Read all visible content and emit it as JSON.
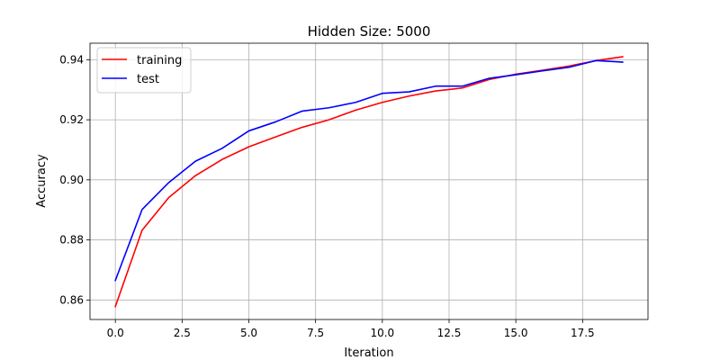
{
  "chart_data": {
    "type": "line",
    "title": "Hidden Size: 5000",
    "xlabel": "Iteration",
    "ylabel": "Accuracy",
    "xlim": [
      -0.95,
      19.95
    ],
    "ylim": [
      0.8535,
      0.9455
    ],
    "xticks": [
      0.0,
      2.5,
      5.0,
      7.5,
      10.0,
      12.5,
      15.0,
      17.5
    ],
    "xtick_labels": [
      "0.0",
      "2.5",
      "5.0",
      "7.5",
      "10.0",
      "12.5",
      "15.0",
      "17.5"
    ],
    "yticks": [
      0.86,
      0.88,
      0.9,
      0.92,
      0.94
    ],
    "ytick_labels": [
      "0.86",
      "0.88",
      "0.90",
      "0.92",
      "0.94"
    ],
    "grid": true,
    "legend_position": "top-left",
    "series": [
      {
        "name": "training",
        "color": "#ff0000",
        "x": [
          0,
          1,
          2,
          3,
          4,
          5,
          6,
          7,
          8,
          9,
          10,
          11,
          12,
          13,
          14,
          15,
          16,
          17,
          18,
          19
        ],
        "values": [
          0.8578,
          0.8832,
          0.8941,
          0.9014,
          0.9068,
          0.911,
          0.9143,
          0.9175,
          0.92,
          0.9232,
          0.9258,
          0.9279,
          0.9296,
          0.9306,
          0.9334,
          0.9352,
          0.9365,
          0.9379,
          0.9397,
          0.941
        ]
      },
      {
        "name": "test",
        "color": "#0000ff",
        "x": [
          0,
          1,
          2,
          3,
          4,
          5,
          6,
          7,
          8,
          9,
          10,
          11,
          12,
          13,
          14,
          15,
          16,
          17,
          18,
          19
        ],
        "values": [
          0.8665,
          0.8901,
          0.8991,
          0.9062,
          0.9105,
          0.9163,
          0.9193,
          0.9229,
          0.924,
          0.9258,
          0.9288,
          0.9293,
          0.9312,
          0.9312,
          0.9338,
          0.935,
          0.9363,
          0.9375,
          0.9397,
          0.9392
        ]
      }
    ]
  }
}
